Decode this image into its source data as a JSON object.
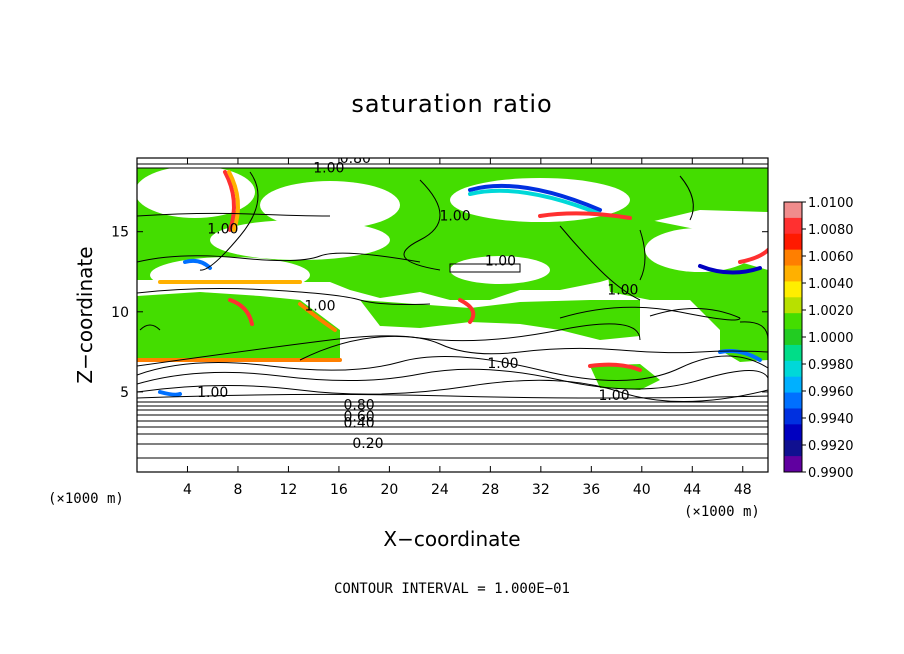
{
  "chart_data": {
    "type": "heatmap",
    "title": "saturation ratio",
    "xlabel": "X−coordinate",
    "ylabel": "Z−coordinate",
    "x_unit": "(×1000 m)",
    "y_unit": "(×1000 m)",
    "xlim": [
      0,
      50
    ],
    "ylim": [
      0,
      19.6
    ],
    "x_ticks": [
      4,
      8,
      12,
      16,
      20,
      24,
      28,
      32,
      36,
      40,
      44,
      48
    ],
    "y_ticks": [
      5,
      10,
      15
    ],
    "colorbar": {
      "labels": [
        "1.0100",
        "1.0080",
        "1.0060",
        "1.0040",
        "1.0020",
        "1.0000",
        "0.9980",
        "0.9960",
        "0.9940",
        "0.9920",
        "0.9900"
      ],
      "colors": [
        "#f08c8c",
        "#ff3030",
        "#ff1a00",
        "#ff7f00",
        "#ffb000",
        "#ffee00",
        "#b8e000",
        "#44dd00",
        "#22cc22",
        "#00dd88",
        "#00d8d8",
        "#00b0ff",
        "#0070ff",
        "#0030e0",
        "#0000c0",
        "#101090",
        "#6000a0"
      ]
    },
    "contour_labels": [
      {
        "text": "0.20",
        "x": 18.3,
        "z": 1.8
      },
      {
        "text": "0.40",
        "x": 17.6,
        "z": 3.1
      },
      {
        "text": "0.60",
        "x": 17.6,
        "z": 3.5
      },
      {
        "text": "0.80",
        "x": 17.6,
        "z": 4.2
      },
      {
        "text": "1.00",
        "x": 6.0,
        "z": 5.0
      },
      {
        "text": "1.00",
        "x": 29.0,
        "z": 6.8
      },
      {
        "text": "1.00",
        "x": 37.8,
        "z": 4.8
      },
      {
        "text": "1.00",
        "x": 14.5,
        "z": 10.4
      },
      {
        "text": "1.00",
        "x": 28.8,
        "z": 13.2
      },
      {
        "text": "1.00",
        "x": 38.5,
        "z": 11.4
      },
      {
        "text": "1.00",
        "x": 6.8,
        "z": 15.2
      },
      {
        "text": "1.00",
        "x": 25.2,
        "z": 16.0
      },
      {
        "text": "1.00",
        "x": 15.2,
        "z": 19.0
      },
      {
        "text": "0.80",
        "x": 17.3,
        "z": 19.6
      }
    ],
    "contour_interval": "CONTOUR INTERVAL = 1.000E−01",
    "grid": false
  }
}
